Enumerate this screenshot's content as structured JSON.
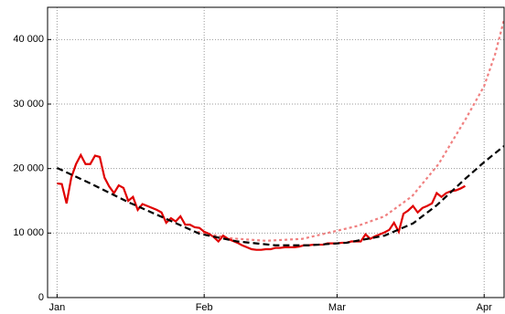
{
  "chart_data": {
    "type": "line",
    "xlim": [
      -2,
      94.2
    ],
    "ylim": [
      0,
      45000
    ],
    "xticks": [
      {
        "value": 0,
        "label": "Jan"
      },
      {
        "value": 31,
        "label": "Feb"
      },
      {
        "value": 59,
        "label": "Mar"
      },
      {
        "value": 90,
        "label": "Apr"
      }
    ],
    "yticks": [
      0,
      {
        "value": 10000,
        "label": "10 000"
      },
      {
        "value": 20000,
        "label": "20 000"
      },
      {
        "value": 30000,
        "label": "30 000"
      },
      {
        "value": 40000,
        "label": "40 000"
      }
    ],
    "grid": true,
    "series": [
      {
        "color": "#f08080",
        "dash": "dotted",
        "x": [
          29.6,
          36.3,
          44,
          51.7,
          57.5,
          63.3,
          69,
          74.8,
          80.4,
          86.2,
          90,
          92.3,
          94.2
        ],
        "values": [
          10200,
          9200,
          8800,
          9100,
          10100,
          11100,
          12600,
          15700,
          20700,
          27800,
          32800,
          37700,
          43100
        ]
      },
      {
        "color": "#e00000",
        "dash": "solid",
        "x": [
          0,
          1,
          2,
          3,
          4,
          5,
          6,
          7,
          8,
          9,
          10,
          11,
          12,
          13,
          14,
          15,
          16,
          17,
          18,
          19,
          20,
          21,
          22,
          23,
          24,
          25,
          26,
          27,
          28,
          29,
          30,
          31,
          32,
          33,
          34,
          35,
          36,
          37,
          38,
          39,
          40,
          41,
          42,
          43,
          44,
          45,
          46,
          47,
          48,
          49,
          50,
          51,
          52,
          53,
          54,
          55,
          56,
          57,
          58,
          59,
          60,
          61,
          62,
          63,
          64,
          65,
          66,
          67,
          68,
          69,
          70,
          71,
          72,
          73,
          74,
          75,
          76,
          77,
          78,
          79,
          80,
          81,
          82,
          83,
          84,
          85,
          86
        ],
        "values": [
          17700,
          17600,
          14600,
          18600,
          20700,
          22100,
          20700,
          20700,
          22000,
          21800,
          18600,
          17200,
          16200,
          17400,
          17000,
          15000,
          15600,
          13600,
          14500,
          14200,
          13900,
          13600,
          13200,
          11600,
          12300,
          11800,
          12600,
          11300,
          11300,
          10900,
          10800,
          10200,
          9900,
          9400,
          8700,
          9600,
          9100,
          8800,
          8500,
          8100,
          7800,
          7500,
          7400,
          7400,
          7500,
          7500,
          7700,
          7700,
          7800,
          7800,
          7800,
          7900,
          8100,
          8100,
          8200,
          8200,
          8200,
          8400,
          8400,
          8400,
          8500,
          8500,
          8700,
          8700,
          8700,
          9800,
          9100,
          9500,
          9800,
          10100,
          10500,
          11600,
          10200,
          13000,
          13500,
          14200,
          13200,
          13900,
          14200,
          14600,
          16200,
          15600,
          16200,
          16500,
          16600,
          16900,
          17300
        ]
      },
      {
        "color": "#000000",
        "dash": "dashed",
        "x": [
          0,
          7,
          15,
          23,
          30,
          38,
          46,
          53,
          61,
          69,
          75,
          80,
          86,
          90,
          94.2
        ],
        "values": [
          20100,
          17700,
          14800,
          12200,
          9900,
          8700,
          8100,
          8100,
          8500,
          9600,
          11500,
          14300,
          18400,
          21000,
          23500
        ]
      }
    ]
  }
}
